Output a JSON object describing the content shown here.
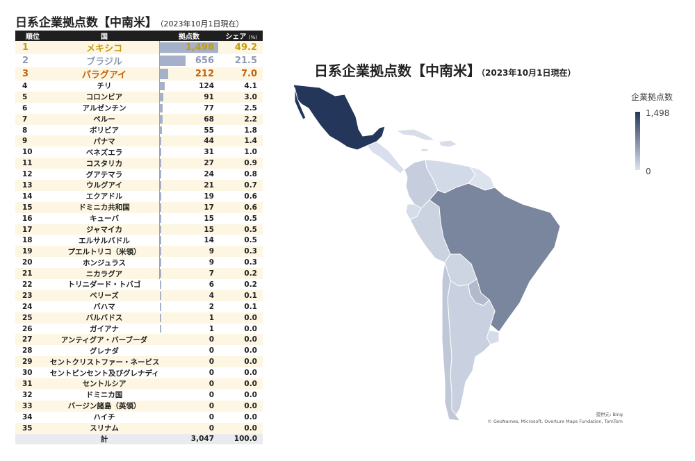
{
  "title": "日系企業拠点数【中南米】",
  "subtitle": "（2023年10月1日現在）",
  "table": {
    "headers": {
      "rank": "順位",
      "country": "国",
      "count": "拠点数",
      "share": "シェア",
      "share_unit": "(%)"
    },
    "rows": [
      {
        "rank": "1",
        "country": "メキシコ",
        "count": "1,498",
        "share": "49.2",
        "value": 1498,
        "color": "#c79a0b"
      },
      {
        "rank": "2",
        "country": "ブラジル",
        "count": "656",
        "share": "21.5",
        "value": 656,
        "color": "#8d9ab3"
      },
      {
        "rank": "3",
        "country": "パラグアイ",
        "count": "212",
        "share": "7.0",
        "value": 212,
        "color": "#c4610b"
      },
      {
        "rank": "4",
        "country": "チリ",
        "count": "124",
        "share": "4.1",
        "value": 124
      },
      {
        "rank": "5",
        "country": "コロンビア",
        "count": "91",
        "share": "3.0",
        "value": 91
      },
      {
        "rank": "6",
        "country": "アルゼンチン",
        "count": "77",
        "share": "2.5",
        "value": 77
      },
      {
        "rank": "7",
        "country": "ペルー",
        "count": "68",
        "share": "2.2",
        "value": 68
      },
      {
        "rank": "8",
        "country": "ボリビア",
        "count": "55",
        "share": "1.8",
        "value": 55
      },
      {
        "rank": "9",
        "country": "パナマ",
        "count": "44",
        "share": "1.4",
        "value": 44
      },
      {
        "rank": "10",
        "country": "ベネズエラ",
        "count": "31",
        "share": "1.0",
        "value": 31
      },
      {
        "rank": "11",
        "country": "コスタリカ",
        "count": "27",
        "share": "0.9",
        "value": 27
      },
      {
        "rank": "12",
        "country": "グアテマラ",
        "count": "24",
        "share": "0.8",
        "value": 24
      },
      {
        "rank": "13",
        "country": "ウルグアイ",
        "count": "21",
        "share": "0.7",
        "value": 21
      },
      {
        "rank": "14",
        "country": "エクアドル",
        "count": "19",
        "share": "0.6",
        "value": 19
      },
      {
        "rank": "15",
        "country": "ドミニカ共和国",
        "count": "17",
        "share": "0.6",
        "value": 17
      },
      {
        "rank": "16",
        "country": "キューバ",
        "count": "15",
        "share": "0.5",
        "value": 15
      },
      {
        "rank": "17",
        "country": "ジャマイカ",
        "count": "15",
        "share": "0.5",
        "value": 15
      },
      {
        "rank": "18",
        "country": "エルサルバドル",
        "count": "14",
        "share": "0.5",
        "value": 14
      },
      {
        "rank": "19",
        "country": "プエルトリコ（米領）",
        "count": "9",
        "share": "0.3",
        "value": 9
      },
      {
        "rank": "20",
        "country": "ホンジュラス",
        "count": "9",
        "share": "0.3",
        "value": 9
      },
      {
        "rank": "21",
        "country": "ニカラグア",
        "count": "7",
        "share": "0.2",
        "value": 7
      },
      {
        "rank": "22",
        "country": "トリニダード・トバゴ",
        "count": "6",
        "share": "0.2",
        "value": 6
      },
      {
        "rank": "23",
        "country": "ベリーズ",
        "count": "4",
        "share": "0.1",
        "value": 4
      },
      {
        "rank": "24",
        "country": "バハマ",
        "count": "2",
        "share": "0.1",
        "value": 2
      },
      {
        "rank": "25",
        "country": "バルバドス",
        "count": "1",
        "share": "0.0",
        "value": 1
      },
      {
        "rank": "26",
        "country": "ガイアナ",
        "count": "1",
        "share": "0.0",
        "value": 1
      },
      {
        "rank": "27",
        "country": "アンティグア・バーブーダ",
        "count": "0",
        "share": "0.0",
        "value": 0
      },
      {
        "rank": "28",
        "country": "グレナダ",
        "count": "0",
        "share": "0.0",
        "value": 0
      },
      {
        "rank": "29",
        "country": "セントクリストファー・ネービス",
        "count": "0",
        "share": "0.0",
        "value": 0
      },
      {
        "rank": "30",
        "country": "セントビンセント及びグレナディーン諸島",
        "count": "0",
        "share": "0.0",
        "value": 0
      },
      {
        "rank": "31",
        "country": "セントルシア",
        "count": "0",
        "share": "0.0",
        "value": 0
      },
      {
        "rank": "32",
        "country": "ドミニカ国",
        "count": "0",
        "share": "0.0",
        "value": 0
      },
      {
        "rank": "33",
        "country": "バージン諸島（英領）",
        "count": "0",
        "share": "0.0",
        "value": 0
      },
      {
        "rank": "34",
        "country": "ハイチ",
        "count": "0",
        "share": "0.0",
        "value": 0
      },
      {
        "rank": "35",
        "country": "スリナム",
        "count": "0",
        "share": "0.0",
        "value": 0
      }
    ],
    "total": {
      "label": "計",
      "count": "3,047",
      "share": "100.0"
    }
  },
  "map": {
    "title": "日系企業拠点数【中南米】",
    "subtitle": "（2023年10月1日現在）",
    "legend_title": "企業拠点数",
    "legend_max": "1,498",
    "legend_min": "0",
    "credit_line1": "提供元: Bing",
    "credit_line2": "© GeoNames, Microsoft, Overture Maps Fundation, TomTom",
    "colors": {
      "max": "#243659",
      "min": "#dde3ef",
      "border": "#ffffff"
    }
  },
  "chart_data": {
    "type": "table",
    "title": "日系企業拠点数【中南米】",
    "subtitle": "（2023年10月1日現在）",
    "columns": [
      "順位",
      "国",
      "拠点数",
      "シェア (%)"
    ],
    "categories": [
      "メキシコ",
      "ブラジル",
      "パラグアイ",
      "チリ",
      "コロンビア",
      "アルゼンチン",
      "ペルー",
      "ボリビア",
      "パナマ",
      "ベネズエラ",
      "コスタリカ",
      "グアテマラ",
      "ウルグアイ",
      "エクアドル",
      "ドミニカ共和国",
      "キューバ",
      "ジャマイカ",
      "エルサルバドル",
      "プエルトリコ（米領）",
      "ホンジュラス",
      "ニカラグア",
      "トリニダード・トバゴ",
      "ベリーズ",
      "バハマ",
      "バルバドス",
      "ガイアナ",
      "アンティグア・バーブーダ",
      "グレナダ",
      "セントクリストファー・ネービス",
      "セントビンセント及びグレナディーン諸島",
      "セントルシア",
      "ドミニカ国",
      "バージン諸島（英領）",
      "ハイチ",
      "スリナム"
    ],
    "series": [
      {
        "name": "拠点数",
        "values": [
          1498,
          656,
          212,
          124,
          91,
          77,
          68,
          55,
          44,
          31,
          27,
          24,
          21,
          19,
          17,
          15,
          15,
          14,
          9,
          9,
          7,
          6,
          4,
          2,
          1,
          1,
          0,
          0,
          0,
          0,
          0,
          0,
          0,
          0,
          0
        ]
      },
      {
        "name": "シェア (%)",
        "values": [
          49.2,
          21.5,
          7.0,
          4.1,
          3.0,
          2.5,
          2.2,
          1.8,
          1.4,
          1.0,
          0.9,
          0.8,
          0.7,
          0.6,
          0.6,
          0.5,
          0.5,
          0.5,
          0.3,
          0.3,
          0.2,
          0.2,
          0.1,
          0.1,
          0.0,
          0.0,
          0.0,
          0.0,
          0.0,
          0.0,
          0.0,
          0.0,
          0.0,
          0.0,
          0.0
        ]
      }
    ],
    "total": {
      "count": 3047,
      "share": 100.0
    },
    "map_legend": {
      "title": "企業拠点数",
      "range": [
        0,
        1498
      ]
    }
  }
}
